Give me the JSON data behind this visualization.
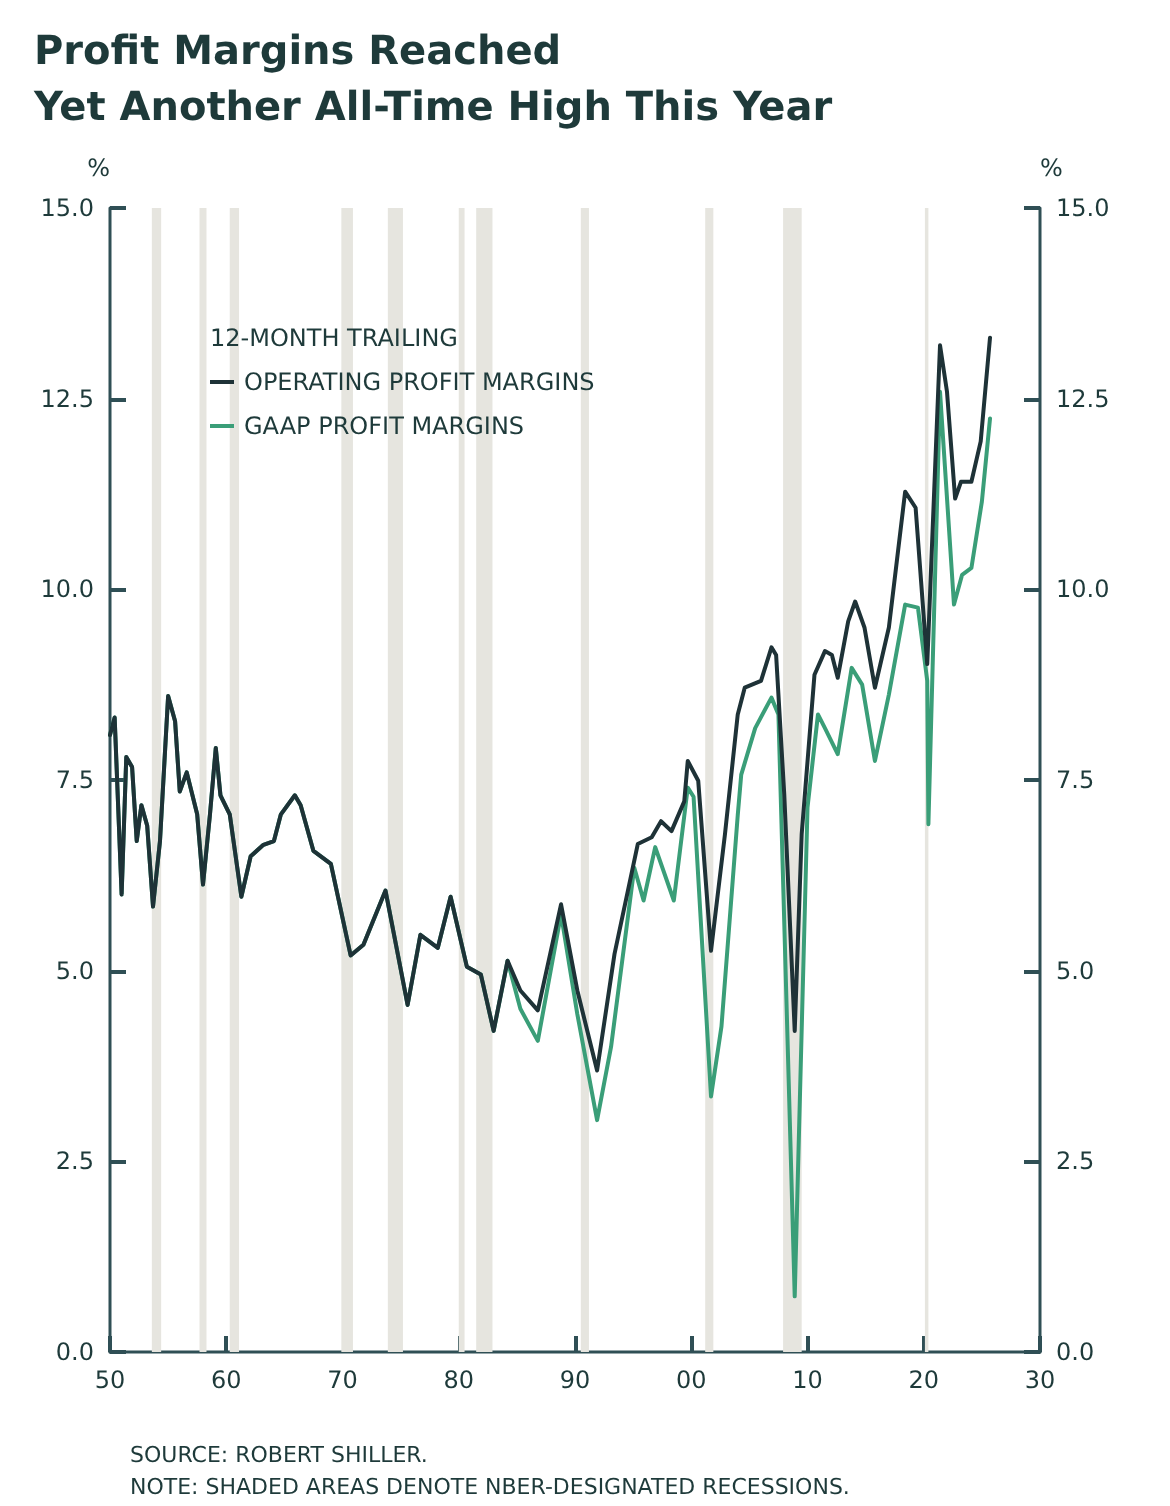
{
  "chart_data": {
    "type": "line",
    "title": "Profit Margins Reached\nYet Another All-Time High This Year",
    "ylabel": "%",
    "y2label": "%",
    "legend_title": "12-MONTH TRAILING",
    "legend": "top left",
    "grid": false,
    "marker": "none",
    "xlim": [
      1950,
      2030
    ],
    "xticks": [
      {
        "value": 1950,
        "label": "50"
      },
      {
        "value": 1960,
        "label": "60"
      },
      {
        "value": 1970,
        "label": "70"
      },
      {
        "value": 1980,
        "label": "80"
      },
      {
        "value": 1990,
        "label": "90"
      },
      {
        "value": 2000,
        "label": "00"
      },
      {
        "value": 2010,
        "label": "10"
      },
      {
        "value": 2020,
        "label": "20"
      },
      {
        "value": 2030,
        "label": "30"
      }
    ],
    "ylim": [
      0,
      15
    ],
    "yticks": [
      {
        "value": 0,
        "label": "0.0"
      },
      2.5,
      {
        "value": 5,
        "label": "5.0"
      },
      7.5,
      {
        "value": 10,
        "label": "10.0"
      },
      12.5,
      {
        "value": 15,
        "label": "15.0"
      }
    ],
    "y2lim": [
      0,
      15
    ],
    "y2ticks": [
      {
        "value": 0,
        "label": "0.0"
      },
      2.5,
      {
        "value": 5,
        "label": "5.0"
      },
      7.5,
      {
        "value": 10,
        "label": "10.0"
      },
      12.5,
      {
        "value": 15,
        "label": "15.0"
      }
    ],
    "series": [
      {
        "name": "OPERATING PROFIT MARGINS",
        "color": "#1e3237",
        "x": [
          1950.0,
          1950.4,
          1951.0,
          1951.4,
          1951.9,
          1952.3,
          1952.7,
          1953.2,
          1953.7,
          1954.3,
          1955.0,
          1955.6,
          1956.0,
          1956.6,
          1957.5,
          1958.0,
          1958.6,
          1959.1,
          1959.5,
          1960.3,
          1961.3,
          1962.1,
          1963.2,
          1964.1,
          1964.7,
          1965.9,
          1966.4,
          1967.5,
          1969.0,
          1970.7,
          1971.8,
          1973.7,
          1975.6,
          1976.7,
          1978.2,
          1979.3,
          1980.7,
          1981.9,
          1983.0,
          1984.2,
          1985.3,
          1986.8,
          1988.8,
          1990.2,
          1991.9,
          1993.4,
          1995.4,
          1996.6,
          1997.4,
          1998.3,
          1999.4,
          1999.7,
          2000.6,
          2001.7,
          2002.9,
          2004.0,
          2004.6,
          2006.0,
          2006.9,
          2007.3,
          2008.0,
          2008.9,
          2009.5,
          2010.6,
          2011.5,
          2012.1,
          2012.6,
          2013.5,
          2014.1,
          2014.9,
          2015.8,
          2017.0,
          2018.4,
          2019.3,
          2020.3,
          2021.4,
          2022.0,
          2022.7,
          2023.2,
          2024.1,
          2024.9,
          2025.7
        ],
        "values": [
          8.09,
          8.32,
          6.0,
          7.8,
          7.67,
          6.7,
          7.17,
          6.9,
          5.84,
          6.7,
          8.6,
          8.27,
          7.35,
          7.6,
          7.05,
          6.13,
          7.05,
          7.92,
          7.3,
          7.05,
          5.97,
          6.5,
          6.65,
          6.7,
          7.05,
          7.3,
          7.17,
          6.57,
          6.4,
          5.2,
          5.34,
          6.05,
          4.55,
          5.47,
          5.3,
          5.97,
          5.05,
          4.95,
          4.21,
          5.13,
          4.74,
          4.48,
          5.87,
          4.74,
          3.69,
          5.22,
          6.66,
          6.75,
          6.96,
          6.83,
          7.22,
          7.75,
          7.49,
          5.26,
          6.79,
          8.36,
          8.71,
          8.8,
          9.24,
          9.14,
          7.31,
          4.21,
          6.79,
          8.88,
          9.19,
          9.14,
          8.84,
          9.58,
          9.84,
          9.5,
          8.71,
          9.5,
          11.28,
          11.07,
          9.02,
          13.2,
          12.59,
          11.19,
          11.41,
          11.41,
          11.94,
          13.3
        ]
      },
      {
        "name": "GAAP PROFIT MARGINS",
        "color": "#3a9e78",
        "x": [
          1950.0,
          1950.4,
          1951.0,
          1951.4,
          1951.9,
          1952.3,
          1952.7,
          1953.2,
          1953.7,
          1954.3,
          1955.0,
          1955.6,
          1956.0,
          1956.6,
          1957.5,
          1958.0,
          1958.6,
          1959.1,
          1959.5,
          1960.3,
          1961.3,
          1962.1,
          1963.2,
          1964.1,
          1964.7,
          1965.9,
          1966.4,
          1967.5,
          1969.0,
          1970.7,
          1971.8,
          1973.7,
          1975.6,
          1976.7,
          1978.2,
          1979.3,
          1980.7,
          1981.9,
          1983.0,
          1984.2,
          1985.3,
          1986.8,
          1988.8,
          1990.2,
          1991.9,
          1993.1,
          1995.1,
          1995.9,
          1996.9,
          1998.5,
          1999.7,
          2000.2,
          2001.7,
          2002.6,
          2004.0,
          2004.3,
          2005.5,
          2006.9,
          2007.5,
          2008.9,
          2010.0,
          2010.9,
          2011.5,
          2012.6,
          2013.8,
          2014.7,
          2015.8,
          2017.0,
          2018.4,
          2019.5,
          2020.3,
          2020.4,
          2021.4,
          2022.6,
          2023.3,
          2024.1,
          2025.0,
          2025.7
        ],
        "values": [
          8.09,
          8.32,
          6.0,
          7.8,
          7.67,
          6.7,
          7.17,
          6.9,
          5.84,
          6.7,
          8.6,
          8.27,
          7.35,
          7.6,
          7.05,
          6.13,
          7.05,
          7.92,
          7.3,
          7.05,
          5.97,
          6.5,
          6.65,
          6.7,
          7.05,
          7.3,
          7.17,
          6.57,
          6.4,
          5.2,
          5.34,
          6.05,
          4.55,
          5.47,
          5.3,
          5.97,
          5.05,
          4.95,
          4.21,
          5.13,
          4.5,
          4.08,
          5.74,
          4.43,
          3.04,
          4.0,
          6.35,
          5.92,
          6.62,
          5.92,
          7.4,
          7.28,
          3.35,
          4.27,
          7.04,
          7.57,
          8.18,
          8.58,
          8.36,
          0.73,
          7.14,
          8.36,
          8.18,
          7.84,
          8.97,
          8.75,
          7.75,
          8.62,
          9.8,
          9.76,
          8.8,
          6.92,
          12.59,
          9.8,
          10.19,
          10.28,
          11.15,
          12.24
        ]
      }
    ],
    "bands": [
      {
        "axis": "x",
        "from": 1953.6,
        "to": 1954.4,
        "color": "#e6e5df"
      },
      {
        "axis": "x",
        "from": 1957.7,
        "to": 1958.3,
        "color": "#e6e5df"
      },
      {
        "axis": "x",
        "from": 1960.3,
        "to": 1961.1,
        "color": "#e6e5df"
      },
      {
        "axis": "x",
        "from": 1969.9,
        "to": 1970.9,
        "color": "#e6e5df"
      },
      {
        "axis": "x",
        "from": 1973.9,
        "to": 1975.2,
        "color": "#e6e5df"
      },
      {
        "axis": "x",
        "from": 1980.0,
        "to": 1980.5,
        "color": "#e6e5df"
      },
      {
        "axis": "x",
        "from": 1981.5,
        "to": 1982.9,
        "color": "#e6e5df"
      },
      {
        "axis": "x",
        "from": 1990.5,
        "to": 1991.2,
        "color": "#e6e5df"
      },
      {
        "axis": "x",
        "from": 2001.2,
        "to": 2001.9,
        "color": "#e6e5df"
      },
      {
        "axis": "x",
        "from": 2007.9,
        "to": 2009.5,
        "color": "#e6e5df"
      },
      {
        "axis": "x",
        "from": 2020.1,
        "to": 2020.4,
        "color": "#e6e5df"
      }
    ],
    "annotations": [
      "SOURCE: ROBERT SHILLER.",
      "NOTE: SHADED AREAS DENOTE NBER-DESIGNATED RECESSIONS."
    ]
  }
}
